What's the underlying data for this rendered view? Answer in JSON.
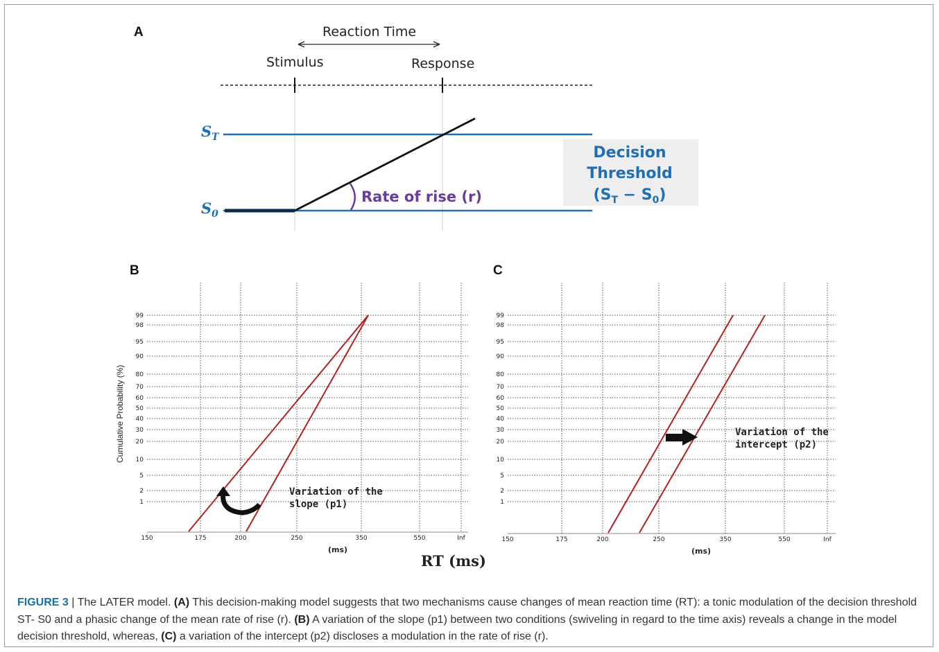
{
  "panel_a": {
    "letter": "A",
    "reaction_time": "Reaction Time",
    "stimulus": "Stimulus",
    "response": "Response",
    "st_label": "S",
    "st_sub": "T",
    "s0_label": "S",
    "s0_sub": "0",
    "rate_of_rise": "Rate of rise (r)",
    "decision_line1": "Decision",
    "decision_line2": "Threshold",
    "decision_line3": "(S",
    "decision_line3_sub1": "T",
    "decision_line3_mid": " − S",
    "decision_line3_sub2": "0",
    "decision_line3_end": ")",
    "colors": {
      "threshold": "#1f6fb4",
      "rise": "#111111",
      "rate": "#6a3d9a",
      "box": "#eeeeee"
    }
  },
  "panel_b": {
    "letter": "B",
    "ylabel": "Cumulative Probability (%)",
    "yticks": [
      "99",
      "98",
      "95",
      "90",
      "80",
      "70",
      "60",
      "50",
      "40",
      "30",
      "20",
      "10",
      "5",
      "2",
      "1"
    ],
    "xticks": [
      "150",
      "175",
      "200",
      "250",
      "350",
      "550",
      "Inf"
    ],
    "xlabel_small": "(ms)",
    "xlabel_big": "RT (ms)",
    "annotation_line1": "Variation of the",
    "annotation_line2": "slope (p1)",
    "line_color": "#b22222"
  },
  "panel_c": {
    "letter": "C",
    "yticks": [
      "99",
      "98",
      "95",
      "90",
      "80",
      "70",
      "60",
      "50",
      "40",
      "30",
      "20",
      "10",
      "5",
      "2",
      "1"
    ],
    "xticks": [
      "150",
      "175",
      "200",
      "250",
      "350",
      "550",
      "Inf"
    ],
    "xlabel_small": "(ms)",
    "annotation_line1": "Variation of the",
    "annotation_line2": "intercept (p2)",
    "line_color": "#b22222"
  },
  "caption": {
    "figure": "FIGURE 3",
    "sep": " | ",
    "t1": "The LATER model. ",
    "a": "(A)",
    "t2": " This decision-making model suggests that two mechanisms cause changes of mean reaction time (RT): a tonic modulation of the decision threshold ST- S0 and a phasic change of the mean rate of rise (r). ",
    "b": "(B)",
    "t3": " A variation of the slope (p1) between two conditions (swiveling in regard to the time axis) reveals a change in the model decision threshold, whereas, ",
    "c": "(C)",
    "t4": " a variation of the intercept (p2) discloses a modulation in the rate of rise (r)."
  }
}
